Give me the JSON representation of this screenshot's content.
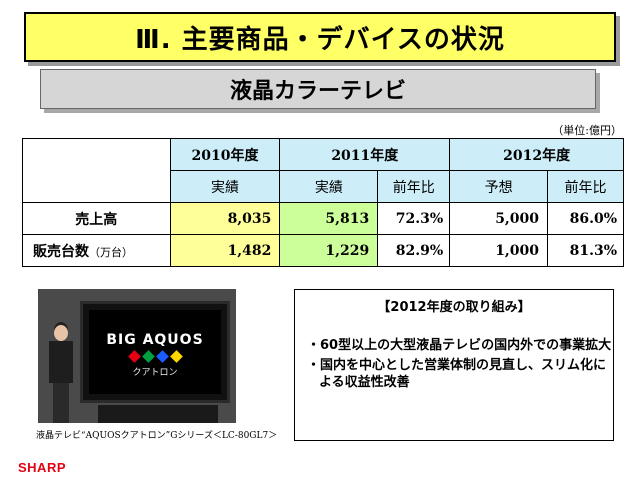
{
  "title": "Ⅲ. 主要商品・デバイスの状況",
  "subtitle": "液晶カラーテレビ",
  "unit": "（単位:億円）",
  "table": {
    "year_headers": [
      "2010年度",
      "2011年度",
      "2012年度"
    ],
    "sub_headers": [
      "実績",
      "実績",
      "前年比",
      "予想",
      "前年比"
    ],
    "rows": [
      {
        "label": "売上高",
        "label_unit": "",
        "values": [
          "8,035",
          "5,813",
          "72.3%",
          "5,000",
          "86.0%"
        ]
      },
      {
        "label": "販売台数",
        "label_unit": "（万台）",
        "values": [
          "1,482",
          "1,229",
          "82.9%",
          "1,000",
          "81.3%"
        ]
      }
    ]
  },
  "photo": {
    "screen_logo": "BIG AQUOS",
    "screen_sub": "クアトロン",
    "dot_colors": [
      "#e60012",
      "#00a040",
      "#1a5cff",
      "#ffd400"
    ]
  },
  "caption": "液晶テレビ“AQUOSクアトロン”Gシリーズ＜LC-80GL7＞",
  "initiatives": {
    "heading": "【2012年度の取り組み】",
    "items": [
      "・60型以上の大型液晶テレビの国内外での事業拡大",
      "・国内を中心とした営業体制の見直し、スリム化による収益性改善"
    ]
  },
  "logo": "SHARP",
  "colors": {
    "title_bg": "#ffff66",
    "subtitle_bg": "#d6d6d6",
    "header_bg": "#cdeef8",
    "col2010_bg": "#ffff99",
    "col2011_bg": "#ccff99",
    "logo": "#e60012"
  }
}
